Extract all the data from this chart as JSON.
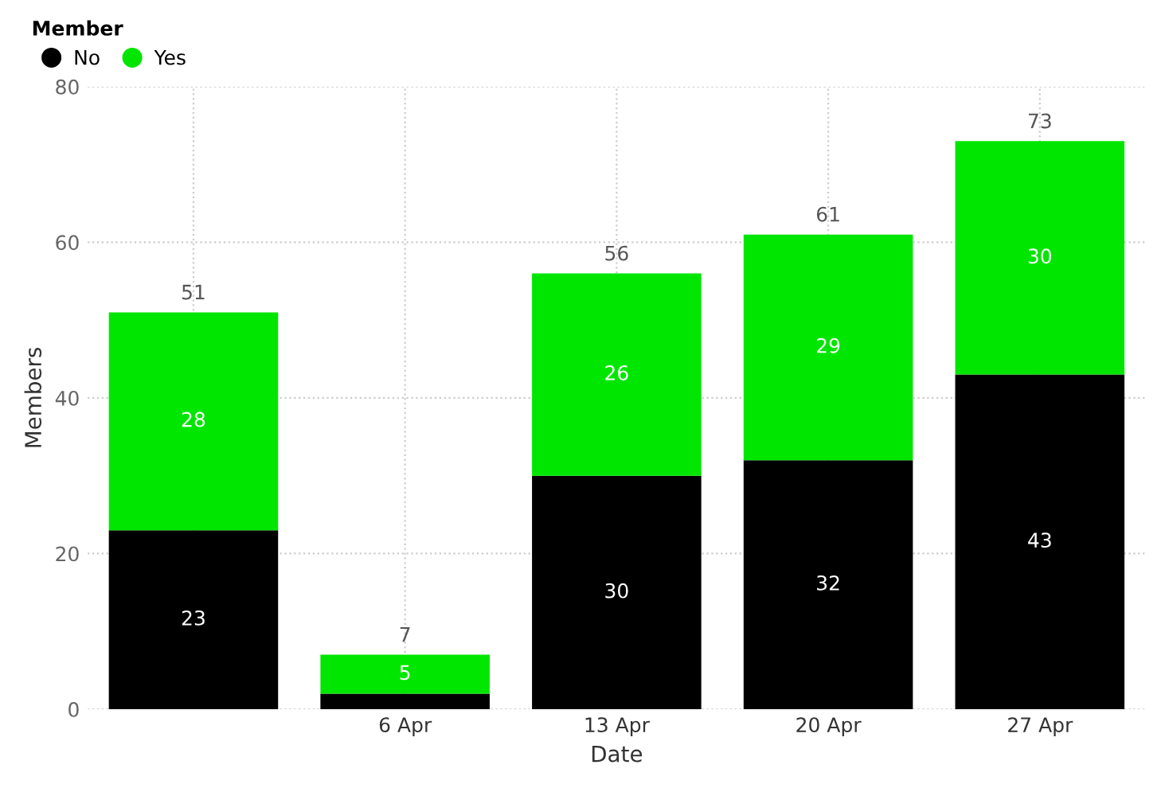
{
  "chart_data": {
    "type": "bar",
    "stacked": true,
    "xlabel": "Date",
    "ylabel": "Members",
    "legend_title": "Member",
    "legend": "top left",
    "grid": true,
    "categories": [
      null,
      "6 Apr",
      "13 Apr",
      "20 Apr",
      "27 Apr"
    ],
    "series": [
      {
        "name": "No",
        "color": "#000000",
        "values": [
          23,
          2,
          30,
          32,
          43
        ],
        "value_labels": [
          "23",
          null,
          "30",
          "32",
          "43"
        ]
      },
      {
        "name": "Yes",
        "color": "#00e600",
        "values": [
          28,
          5,
          26,
          29,
          30
        ],
        "value_labels": [
          "28",
          "5",
          "26",
          "29",
          "30"
        ]
      }
    ],
    "totals": [
      "51",
      "7",
      "56",
      "61",
      "73"
    ],
    "ylim": [
      0,
      80
    ],
    "yticks": [
      0,
      20,
      40,
      60,
      80
    ]
  }
}
